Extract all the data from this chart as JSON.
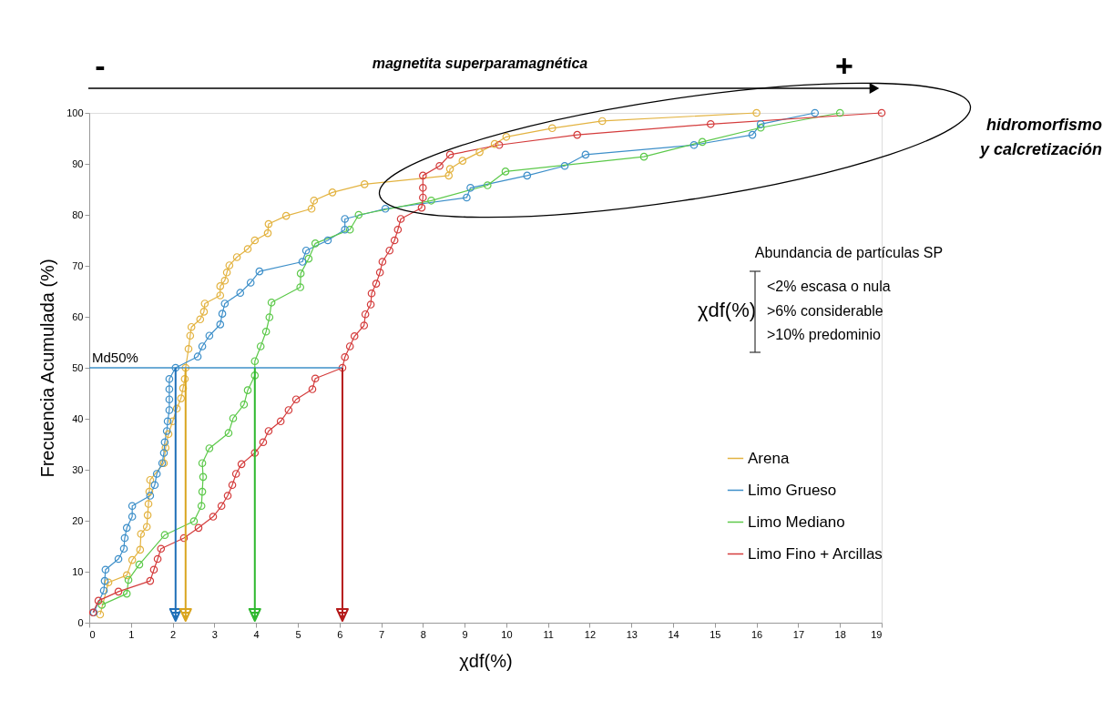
{
  "chart_data": {
    "type": "line",
    "xlabel": "χdf(%)",
    "ylabel": "Frecuencia Acumulada (%)",
    "xlim": [
      0,
      19
    ],
    "xticks": [
      0,
      1,
      2,
      3,
      4,
      5,
      6,
      7,
      8,
      9,
      10,
      11,
      12,
      13,
      14,
      15,
      16,
      17,
      18,
      19
    ],
    "ylim": [
      0,
      100
    ],
    "yticks": [
      0,
      10,
      20,
      30,
      40,
      50,
      60,
      70,
      80,
      90,
      100
    ],
    "grid": false,
    "legend": "bottom right",
    "marker": "circle",
    "line_style": "solid",
    "series": [
      {
        "name": "Arena",
        "color": "#e3b341",
        "x": [
          0.26,
          0.46,
          0.9,
          1.03,
          1.22,
          1.24,
          1.38,
          1.4,
          1.42,
          1.44,
          1.46,
          1.79,
          1.83,
          1.9,
          2.0,
          2.1,
          2.2,
          2.25,
          2.29,
          2.31,
          2.38,
          2.42,
          2.45,
          2.66,
          2.75,
          2.77,
          3.14,
          3.14,
          3.25,
          3.3,
          3.36,
          3.54,
          3.8,
          3.97,
          4.28,
          4.3,
          4.72,
          5.33,
          5.39,
          5.83,
          6.6,
          8.62,
          8.65,
          8.95,
          9.36,
          9.72,
          10.0,
          11.1,
          12.3,
          16.0
        ],
        "values": [
          1.6,
          7.9,
          9.3,
          12.3,
          14.3,
          17.4,
          18.8,
          21.1,
          23.3,
          25.7,
          28,
          31.3,
          34.3,
          37,
          39.5,
          42,
          44,
          46,
          47.8,
          50,
          53.7,
          56.3,
          58,
          59.5,
          61,
          62.6,
          64.2,
          66,
          67.1,
          68.7,
          70.1,
          71.7,
          73.3,
          75,
          76.4,
          78.2,
          79.8,
          81.2,
          82.8,
          84.4,
          86,
          87.7,
          89,
          90.6,
          92.3,
          93.9,
          95.3,
          97,
          98.4,
          100
        ]
      },
      {
        "name": "Limo Grueso",
        "color": "#3d8fc9",
        "x": [
          0.11,
          0.35,
          0.37,
          0.39,
          0.7,
          0.83,
          0.85,
          0.9,
          1.03,
          1.03,
          1.46,
          1.57,
          1.62,
          1.75,
          1.79,
          1.81,
          1.86,
          1.88,
          1.92,
          1.92,
          1.92,
          1.92,
          2.07,
          2.6,
          2.71,
          2.88,
          3.14,
          3.19,
          3.25,
          3.62,
          3.87,
          4.08,
          5.11,
          5.2,
          5.72,
          6.13,
          6.13,
          7.1,
          9.05,
          9.14,
          10.5,
          11.4,
          11.9,
          14.5,
          15.9,
          16.1,
          17.4
        ],
        "values": [
          2,
          6.3,
          8.2,
          10.4,
          12.5,
          14.5,
          16.6,
          18.6,
          20.8,
          22.9,
          24.9,
          27,
          29.2,
          31.3,
          33.3,
          35.4,
          37.6,
          39.5,
          41.7,
          43.8,
          45.8,
          47.8,
          50,
          52.2,
          54.2,
          56.3,
          58.5,
          60.6,
          62.6,
          64.7,
          66.7,
          68.9,
          70.8,
          73,
          75,
          77.1,
          79.2,
          81.2,
          83.4,
          85.3,
          87.7,
          89.6,
          91.8,
          93.7,
          95.7,
          97.8,
          100
        ]
      },
      {
        "name": "Limo Mediano",
        "color": "#5cc94a",
        "x": [
          0.3,
          0.9,
          0.94,
          1.2,
          1.81,
          2.51,
          2.69,
          2.71,
          2.73,
          2.71,
          2.88,
          3.34,
          3.45,
          3.71,
          3.8,
          3.97,
          3.97,
          4.11,
          4.24,
          4.32,
          4.37,
          5.06,
          5.07,
          5.26,
          5.42,
          6.25,
          6.46,
          8.2,
          9.55,
          9.98,
          13.3,
          14.7,
          16.1,
          18.0
        ],
        "values": [
          3.5,
          5.7,
          8.4,
          11.4,
          17.2,
          19.9,
          22.9,
          25.7,
          28.6,
          31.3,
          34.2,
          37.2,
          40.1,
          42.8,
          45.6,
          48.5,
          51.3,
          54.2,
          57.1,
          59.9,
          62.8,
          65.8,
          68.5,
          71.4,
          74.4,
          77.1,
          80,
          82.8,
          85.8,
          88.5,
          91.4,
          94.3,
          97.1,
          100
        ]
      },
      {
        "name": "Limo Fino + Arcillas",
        "color": "#d43c3c",
        "x": [
          0.09,
          0.22,
          0.7,
          1.46,
          1.55,
          1.64,
          1.72,
          2.27,
          2.62,
          2.97,
          3.17,
          3.32,
          3.43,
          3.52,
          3.65,
          3.97,
          4.17,
          4.3,
          4.59,
          4.78,
          4.96,
          5.35,
          5.42,
          6.07,
          6.13,
          6.25,
          6.36,
          6.59,
          6.62,
          6.75,
          6.77,
          6.88,
          6.97,
          7.03,
          7.2,
          7.32,
          7.4,
          7.47,
          7.97,
          8.0,
          8.0,
          8.0,
          8.4,
          8.65,
          9.83,
          11.7,
          14.9,
          19.0
        ],
        "values": [
          2,
          4.3,
          6.1,
          8.2,
          10.4,
          12.5,
          14.5,
          16.6,
          18.6,
          20.8,
          22.9,
          24.9,
          27,
          29.2,
          31.1,
          33.3,
          35.4,
          37.6,
          39.5,
          41.7,
          43.8,
          45.8,
          47.9,
          50,
          52.1,
          54.2,
          56.2,
          58.3,
          60.5,
          62.4,
          64.6,
          66.5,
          68.7,
          70.8,
          73,
          75,
          77.1,
          79.2,
          81.4,
          83.4,
          85.3,
          87.7,
          89.6,
          91.8,
          93.7,
          95.7,
          97.8,
          100
        ]
      }
    ],
    "ref_lines": [
      {
        "axis": "y",
        "value": 50,
        "label": "Md50%",
        "color": "#3d8fc9"
      },
      {
        "axis": "x",
        "value": 2.07,
        "color": "#1f6fb8"
      },
      {
        "axis": "x",
        "value": 2.31,
        "color": "#d9a520"
      },
      {
        "axis": "x",
        "value": 3.97,
        "color": "#2fb82f"
      },
      {
        "axis": "x",
        "value": 6.07,
        "color": "#b51a1a"
      }
    ],
    "annotations": [
      "-",
      "magnetita superparamagnética",
      "+",
      "hidromorfismo\ny calcretización",
      "Abundancia de partículas SP",
      "χdf(%)",
      "<2% escasa o nula",
      ">6% considerable",
      ">10% predominio"
    ]
  }
}
